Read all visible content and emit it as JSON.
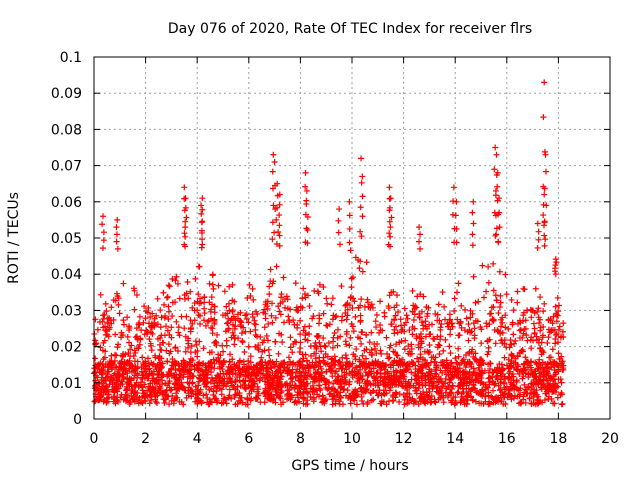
{
  "chart_data": {
    "type": "scatter",
    "title": "Day 076 of 2020, Rate Of TEC Index for receiver flrs",
    "xlabel": "GPS time / hours",
    "ylabel": "ROTI / TECUs",
    "xlim": [
      0,
      20
    ],
    "ylim": [
      0,
      0.1
    ],
    "xticks": [
      0,
      2,
      4,
      6,
      8,
      10,
      12,
      14,
      16,
      18,
      20
    ],
    "yticks": [
      0,
      0.01,
      0.02,
      0.03,
      0.04,
      0.05,
      0.06,
      0.07,
      0.08,
      0.09,
      0.1
    ],
    "xtick_labels": [
      "0",
      "2",
      "4",
      "6",
      "8",
      "10",
      "12",
      "14",
      "16",
      "18",
      "20"
    ],
    "ytick_labels": [
      "0",
      "0.01",
      "0.02",
      "0.03",
      "0.04",
      "0.05",
      "0.06",
      "0.07",
      "0.08",
      "0.09",
      "0.1"
    ],
    "grid": true,
    "marker": "+",
    "color": "#ff0000",
    "series": [
      {
        "name": "ROTI",
        "data_range_hours": [
          0,
          18.2
        ],
        "envelope": [
          {
            "x": 0.0,
            "y": 0.03
          },
          {
            "x": 0.3,
            "y": 0.036
          },
          {
            "x": 0.6,
            "y": 0.035
          },
          {
            "x": 0.8,
            "y": 0.048
          },
          {
            "x": 1.0,
            "y": 0.038
          },
          {
            "x": 1.5,
            "y": 0.036
          },
          {
            "x": 2.0,
            "y": 0.04
          },
          {
            "x": 2.5,
            "y": 0.033
          },
          {
            "x": 3.0,
            "y": 0.04
          },
          {
            "x": 3.5,
            "y": 0.045
          },
          {
            "x": 4.0,
            "y": 0.047
          },
          {
            "x": 4.5,
            "y": 0.041
          },
          {
            "x": 5.0,
            "y": 0.036
          },
          {
            "x": 5.5,
            "y": 0.038
          },
          {
            "x": 6.0,
            "y": 0.04
          },
          {
            "x": 6.5,
            "y": 0.036
          },
          {
            "x": 7.0,
            "y": 0.05
          },
          {
            "x": 7.5,
            "y": 0.038
          },
          {
            "x": 8.0,
            "y": 0.04
          },
          {
            "x": 8.5,
            "y": 0.036
          },
          {
            "x": 9.0,
            "y": 0.04
          },
          {
            "x": 9.5,
            "y": 0.039
          },
          {
            "x": 10.0,
            "y": 0.048
          },
          {
            "x": 10.5,
            "y": 0.046
          },
          {
            "x": 11.0,
            "y": 0.034
          },
          {
            "x": 11.5,
            "y": 0.036
          },
          {
            "x": 12.0,
            "y": 0.033
          },
          {
            "x": 12.5,
            "y": 0.04
          },
          {
            "x": 13.0,
            "y": 0.03
          },
          {
            "x": 13.5,
            "y": 0.035
          },
          {
            "x": 14.0,
            "y": 0.04
          },
          {
            "x": 14.5,
            "y": 0.038
          },
          {
            "x": 15.0,
            "y": 0.042
          },
          {
            "x": 15.5,
            "y": 0.047
          },
          {
            "x": 16.0,
            "y": 0.04
          },
          {
            "x": 16.5,
            "y": 0.035
          },
          {
            "x": 17.0,
            "y": 0.04
          },
          {
            "x": 17.5,
            "y": 0.032
          },
          {
            "x": 18.0,
            "y": 0.037
          },
          {
            "x": 18.2,
            "y": 0.03
          }
        ],
        "spikes": [
          {
            "x": 0.35,
            "y": 0.056
          },
          {
            "x": 0.9,
            "y": 0.055
          },
          {
            "x": 3.5,
            "y": 0.064
          },
          {
            "x": 3.55,
            "y": 0.061
          },
          {
            "x": 4.2,
            "y": 0.061
          },
          {
            "x": 4.15,
            "y": 0.059
          },
          {
            "x": 6.95,
            "y": 0.073
          },
          {
            "x": 7.0,
            "y": 0.071
          },
          {
            "x": 7.1,
            "y": 0.065
          },
          {
            "x": 7.2,
            "y": 0.062
          },
          {
            "x": 8.2,
            "y": 0.068
          },
          {
            "x": 8.25,
            "y": 0.063
          },
          {
            "x": 9.5,
            "y": 0.058
          },
          {
            "x": 9.9,
            "y": 0.06
          },
          {
            "x": 10.35,
            "y": 0.072
          },
          {
            "x": 10.4,
            "y": 0.067
          },
          {
            "x": 11.45,
            "y": 0.064
          },
          {
            "x": 11.5,
            "y": 0.061
          },
          {
            "x": 12.6,
            "y": 0.053
          },
          {
            "x": 13.95,
            "y": 0.064
          },
          {
            "x": 14.05,
            "y": 0.06
          },
          {
            "x": 14.7,
            "y": 0.06
          },
          {
            "x": 15.55,
            "y": 0.075
          },
          {
            "x": 15.6,
            "y": 0.073
          },
          {
            "x": 15.65,
            "y": 0.068
          },
          {
            "x": 15.7,
            "y": 0.061
          },
          {
            "x": 17.2,
            "y": 0.054
          },
          {
            "x": 17.45,
            "y": 0.093
          },
          {
            "x": 17.5,
            "y": 0.073
          },
          {
            "x": 17.45,
            "y": 0.062
          },
          {
            "x": 17.9,
            "y": 0.04
          }
        ]
      }
    ]
  }
}
